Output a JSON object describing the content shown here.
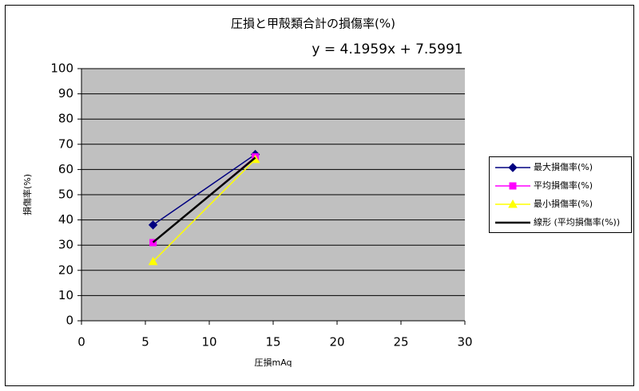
{
  "chart_data": {
    "type": "scatter",
    "title": "圧損と甲殻類合計の損傷率(%)",
    "annotation": "y = 4.1959x + 7.5991",
    "x_label": "圧損mAq",
    "y_label": "損傷率(%)",
    "xlim": [
      0,
      30
    ],
    "xticks": [
      0,
      5,
      10,
      15,
      20,
      25,
      30
    ],
    "ylim": [
      0,
      100
    ],
    "yticks": [
      0,
      10,
      20,
      30,
      40,
      50,
      60,
      70,
      80,
      90,
      100
    ],
    "grid": true,
    "legend": "right",
    "series": [
      {
        "name": "最大損傷率(%)",
        "color": "#000080",
        "marker": "diamond",
        "x": [
          5.6,
          13.6
        ],
        "values": [
          38,
          66
        ]
      },
      {
        "name": "平均損傷率(%)",
        "color": "#ff00ff",
        "marker": "square",
        "x": [
          5.6,
          13.6
        ],
        "values": [
          31,
          65
        ]
      },
      {
        "name": "最小損傷率(%)",
        "color": "#ffff00",
        "marker": "triangle",
        "x": [
          5.6,
          13.6
        ],
        "values": [
          23.5,
          64
        ]
      },
      {
        "name": "線形 (平均損傷率(%))",
        "color": "#000000",
        "marker": "none",
        "x": [
          5.6,
          13.6
        ],
        "values": [
          31.1,
          64.7
        ]
      }
    ]
  }
}
